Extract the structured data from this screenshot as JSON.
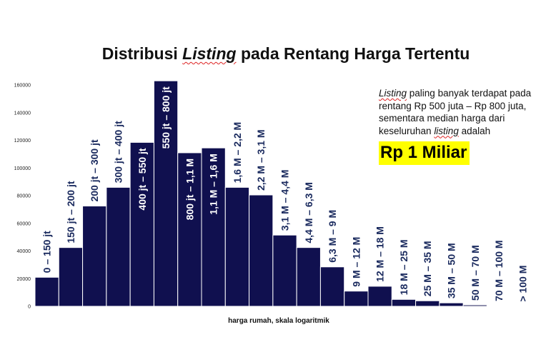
{
  "chart_data": {
    "type": "bar",
    "title_parts": [
      "Distribusi ",
      "Listing",
      " pada Rentang Harga Tertentu"
    ],
    "xlabel": "harga rumah, skala logaritmik",
    "ylabel": "",
    "ylim": [
      0,
      160000
    ],
    "yticks": [
      0,
      20000,
      40000,
      60000,
      80000,
      100000,
      120000,
      140000,
      160000
    ],
    "ytick_labels": [
      "0",
      "20000",
      "40000",
      "60000",
      "80000",
      "100000",
      "120000",
      "140000",
      "160000"
    ],
    "categories": [
      "0 – 150 jt",
      "150 jt – 200 jt",
      "200 jt – 300 jt",
      "300 jt – 400 jt",
      "400 jt – 550 jt",
      "550 jt – 800 jt",
      "800 jt – 1,1 M",
      "1,1 M – 1,6 M",
      "1,6 M – 2,2 M",
      "2,2 M – 3,1 M",
      "3,1 M – 4,4 M",
      "4,4 M – 6,3 M",
      "6,3 M – 9 M",
      "9 M – 12 M",
      "12 M – 18 M",
      "18 M – 25 M",
      "25 M – 35 M",
      "35 M – 50 M",
      "50 M – 70 M",
      "70 M – 100 M",
      "> 100 M"
    ],
    "values": [
      21000,
      42500,
      72500,
      86000,
      118500,
      163000,
      111000,
      114500,
      86000,
      80500,
      51500,
      42500,
      28500,
      11000,
      14500,
      5000,
      4000,
      2500,
      1000,
      500,
      200
    ],
    "bar_color": "#10104f",
    "label_color": "#1a2a5e",
    "label_color_inside": "#ffffff"
  },
  "annotation": {
    "line1_italic": "Listing",
    "line1_rest": " paling banyak terdapat pada rentang Rp 500 juta – Rp 800 juta, sementara median harga dari keseluruhan ",
    "line2_italic": "listing",
    "line2_rest": " adalah",
    "median_value": "Rp 1 Miliar"
  }
}
